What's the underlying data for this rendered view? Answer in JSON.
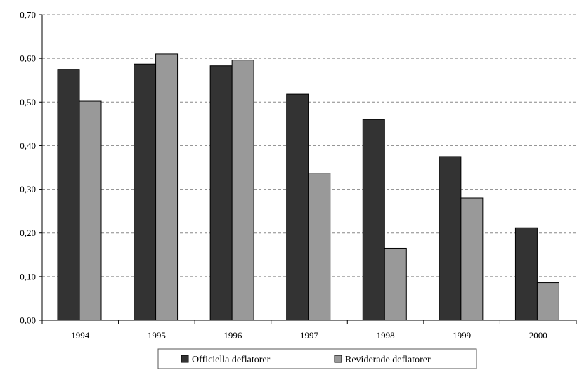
{
  "chart_data": {
    "type": "bar",
    "categories": [
      "1994",
      "1995",
      "1996",
      "1997",
      "1998",
      "1999",
      "2000"
    ],
    "series": [
      {
        "name": "Officiella deflatorer",
        "values": [
          0.575,
          0.587,
          0.583,
          0.518,
          0.46,
          0.375,
          0.212
        ],
        "color": "#333333"
      },
      {
        "name": "Reviderade deflatorer",
        "values": [
          0.502,
          0.61,
          0.596,
          0.337,
          0.165,
          0.28,
          0.086
        ],
        "color": "#999999"
      }
    ],
    "yticks": [
      "0,00",
      "0,10",
      "0,20",
      "0,30",
      "0,40",
      "0,50",
      "0,60",
      "0,70"
    ],
    "ylim": [
      0,
      0.7
    ],
    "grid": true,
    "legend_position": "bottom"
  }
}
